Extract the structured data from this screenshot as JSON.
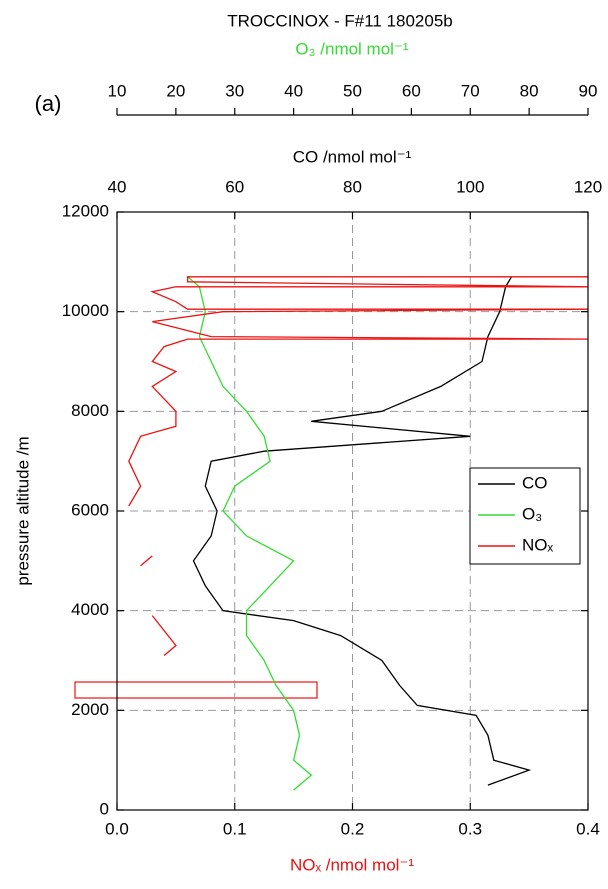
{
  "chart_data": {
    "type": "line",
    "title": "TROCCINOX - F#11 180205b",
    "panel_label": "(a)",
    "y_label": "pressure altitude /m",
    "ylim": [
      0,
      12000
    ],
    "yticks": [
      0,
      2000,
      4000,
      6000,
      8000,
      10000,
      12000
    ],
    "x_label": "NOₓ /nmol mol⁻¹",
    "xlim": [
      0,
      0.4
    ],
    "xticks": [
      {
        "value": 0,
        "label": "0.0"
      },
      0.1,
      0.2,
      0.3,
      0.4
    ],
    "x2_label": "CO /nmol mol⁻¹",
    "x2lim": [
      40,
      120
    ],
    "x2ticks": [
      40,
      60,
      80,
      100,
      120
    ],
    "x3_label": "O₃ /nmol mol⁻¹",
    "x3lim": [
      10,
      90
    ],
    "x3ticks": [
      10,
      20,
      30,
      40,
      50,
      60,
      70,
      80,
      90
    ],
    "grid": true,
    "legend": "right",
    "series": [
      {
        "name": "CO",
        "color": "#000000",
        "axis": "x2",
        "altitude": [
          500,
          800,
          1000,
          1500,
          1900,
          2100,
          2500,
          3000,
          3500,
          3800,
          4000,
          4500,
          5000,
          5500,
          6000,
          6500,
          7000,
          7200,
          7500,
          7800,
          8000,
          8500,
          9000,
          9500,
          10000,
          10500,
          10700
        ],
        "values": [
          103,
          110,
          104,
          103,
          101,
          91,
          88,
          85,
          78,
          70,
          58,
          55,
          53,
          56,
          57,
          55,
          56,
          65,
          100,
          73,
          85,
          95,
          102,
          103,
          105,
          106,
          107
        ]
      },
      {
        "name": "O₃",
        "color": "#33dd33",
        "axis": "x3",
        "altitude": [
          400,
          700,
          1000,
          1500,
          2000,
          2500,
          3000,
          3500,
          4000,
          4500,
          5000,
          5500,
          6000,
          6500,
          7000,
          7500,
          8000,
          8500,
          9000,
          9500,
          10000,
          10500,
          10700
        ],
        "values": [
          40,
          43,
          40,
          41,
          40,
          37,
          35,
          32,
          32,
          36,
          40,
          32,
          28,
          30,
          36,
          35,
          32,
          28,
          26,
          24,
          25,
          24,
          22
        ]
      },
      {
        "name": "NOₓ",
        "color": "#ee1111",
        "axis": "x",
        "altitude": [
          3100,
          3300,
          3600,
          3900,
          null,
          4900,
          5100,
          null,
          6100,
          6500,
          7000,
          7500,
          7700,
          8000,
          8500,
          8800,
          9000,
          9300,
          9450,
          9450,
          9500,
          9800,
          10000,
          10050,
          10050,
          10200,
          10400,
          10500,
          10500,
          10600,
          10700,
          10700
        ],
        "values": [
          0.04,
          0.05,
          0.04,
          0.03,
          null,
          0.02,
          0.03,
          null,
          0.01,
          0.02,
          0.01,
          0.02,
          0.05,
          0.05,
          0.03,
          0.05,
          0.03,
          0.04,
          0.06,
          0.4,
          0.08,
          0.03,
          0.09,
          0.4,
          0.06,
          0.05,
          0.03,
          0.05,
          0.4,
          0.06,
          0.06,
          0.4
        ]
      }
    ]
  }
}
